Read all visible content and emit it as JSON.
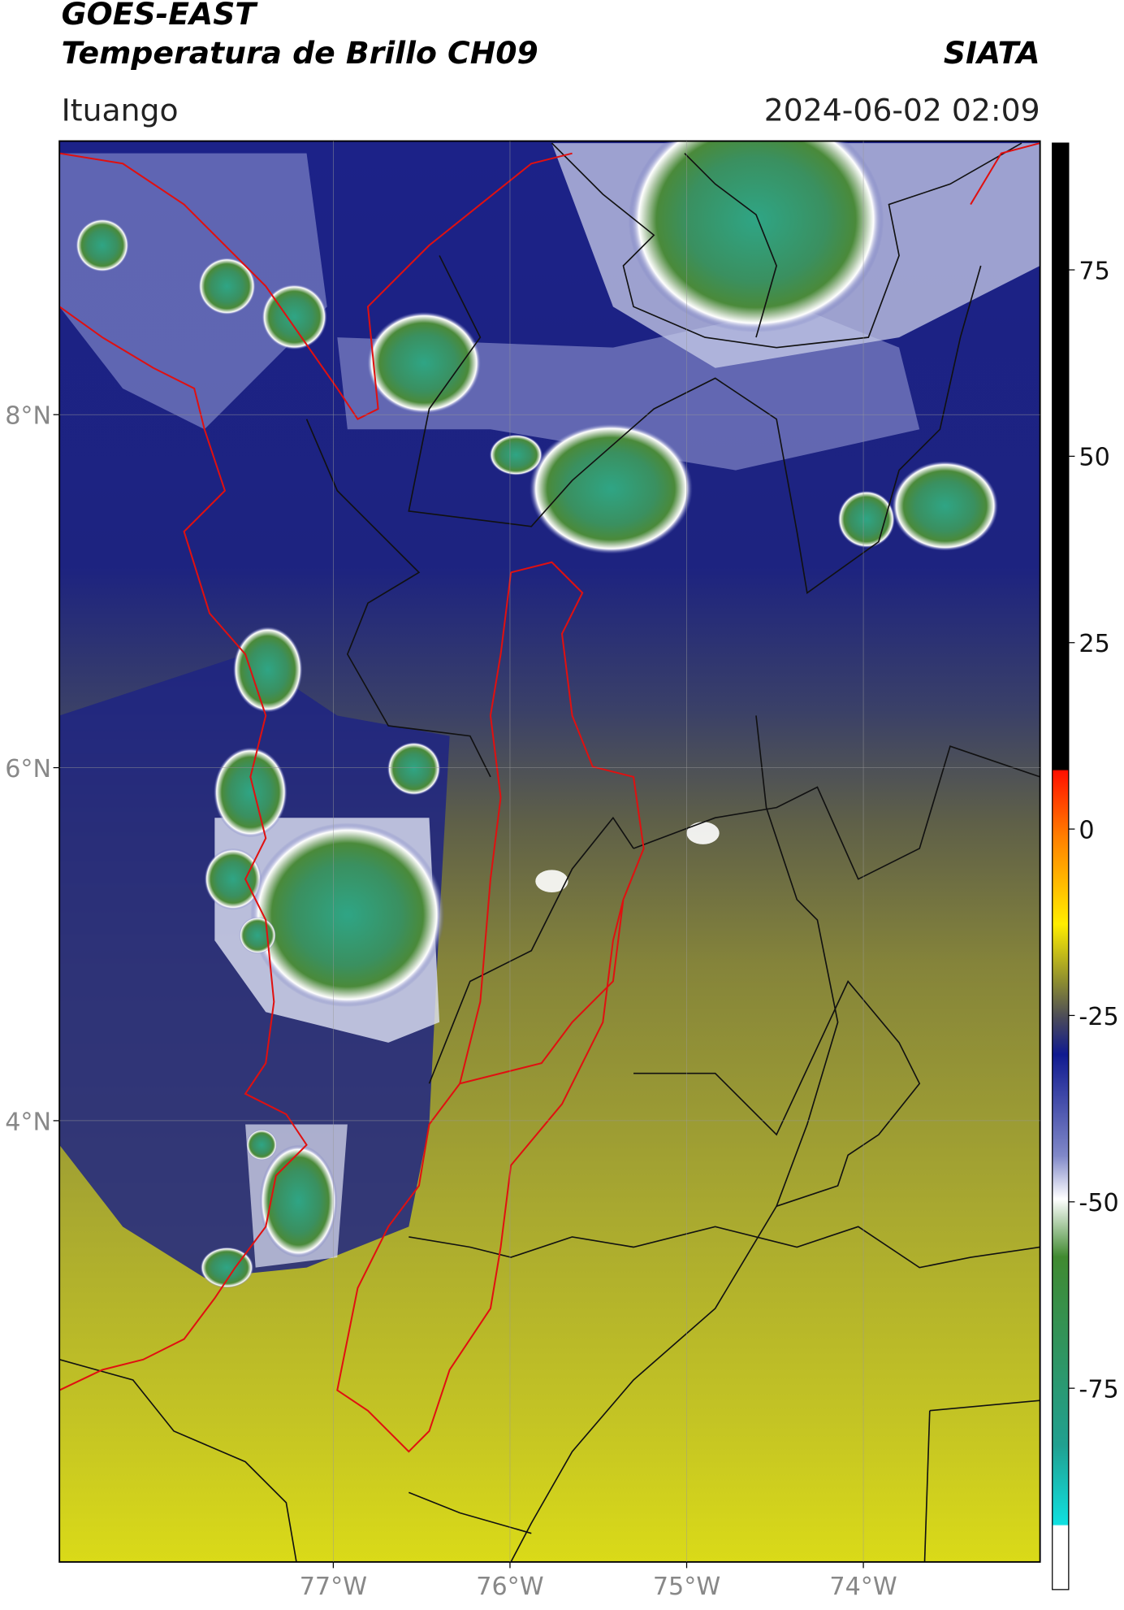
{
  "header": {
    "title": "GOES-EAST",
    "subtitle": "Temperatura de Brillo CH09",
    "agency": "SIATA",
    "region": "Ituango",
    "datetime": "2024-06-02 02:09"
  },
  "map": {
    "xlim": [
      -78.55,
      -73.0
    ],
    "ylim": [
      1.5,
      9.55
    ],
    "xticks": [
      {
        "value": -77,
        "label": "77°W"
      },
      {
        "value": -76,
        "label": "76°W"
      },
      {
        "value": -75,
        "label": "75°W"
      },
      {
        "value": -74,
        "label": "74°W"
      }
    ],
    "yticks": [
      {
        "value": 4,
        "label": "4°N"
      },
      {
        "value": 6,
        "label": "6°N"
      },
      {
        "value": 8,
        "label": "8°N"
      }
    ],
    "grid": true
  },
  "colorbar": {
    "lim": [
      -102,
      92
    ],
    "ticks": [
      -75,
      -50,
      -25,
      0,
      25,
      50,
      75
    ]
  }
}
